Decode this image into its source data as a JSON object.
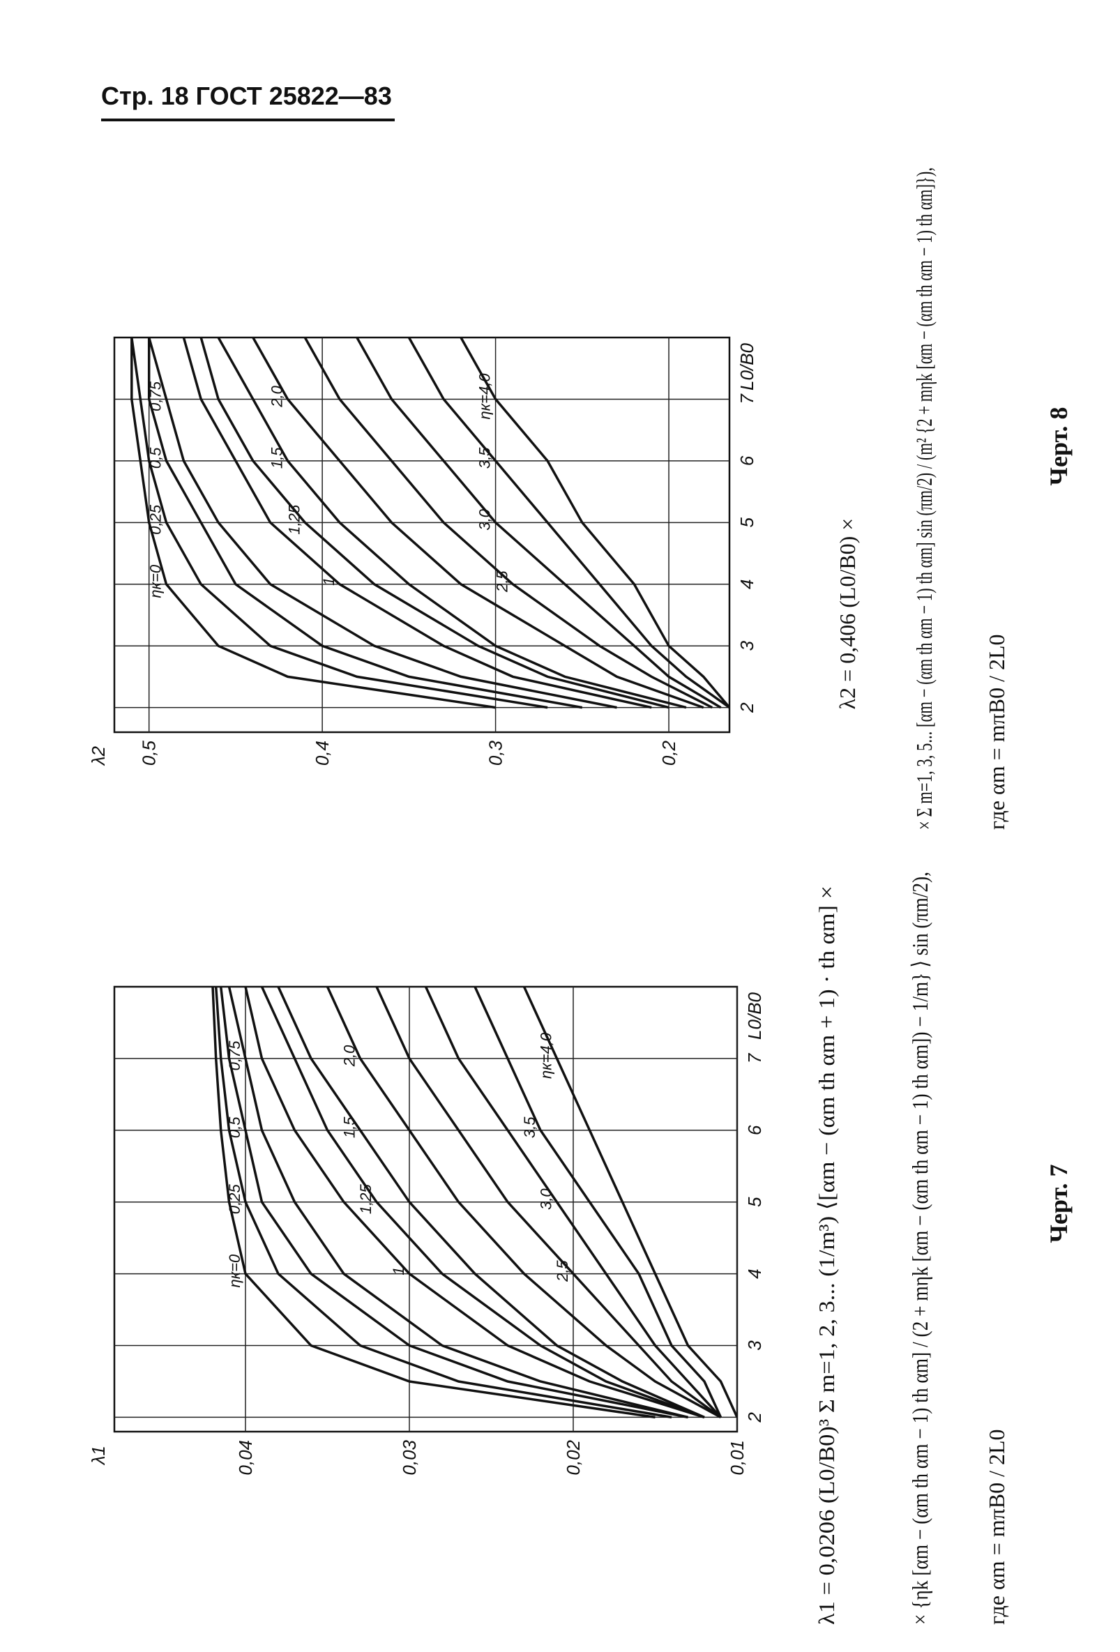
{
  "header": {
    "text": "Стр. 18 ГОСТ 25822—83"
  },
  "chart_data": [
    {
      "type": "line",
      "y_label": "λ1",
      "x_label": "L0/B0",
      "x": [
        2,
        2.5,
        3,
        4,
        5,
        6,
        7,
        8
      ],
      "xlim": [
        1.8,
        8
      ],
      "ylim": [
        0.01,
        0.048
      ],
      "xticks": [
        2,
        3,
        4,
        5,
        6,
        7
      ],
      "yticks": [
        {
          "value": 0.01,
          "label": "0,01"
        },
        {
          "value": 0.02,
          "label": "0,02"
        },
        {
          "value": 0.03,
          "label": "0,03"
        },
        {
          "value": 0.04,
          "label": "0,04"
        }
      ],
      "grid": true,
      "color": "#111111",
      "series": [
        {
          "name": "ηк=0",
          "values": [
            0.015,
            0.03,
            0.036,
            0.04,
            0.041,
            0.0415,
            0.0418,
            0.042
          ]
        },
        {
          "name": "0,25",
          "values": [
            0.014,
            0.027,
            0.033,
            0.038,
            0.04,
            0.041,
            0.0415,
            0.0418
          ]
        },
        {
          "name": "0,5",
          "values": [
            0.013,
            0.024,
            0.03,
            0.036,
            0.039,
            0.04,
            0.041,
            0.0415
          ]
        },
        {
          "name": "0,75",
          "values": [
            0.013,
            0.022,
            0.028,
            0.034,
            0.037,
            0.039,
            0.04,
            0.041
          ]
        },
        {
          "name": "1",
          "values": [
            0.012,
            0.019,
            0.024,
            0.03,
            0.034,
            0.037,
            0.039,
            0.04
          ]
        },
        {
          "name": "1,25",
          "values": [
            0.012,
            0.018,
            0.022,
            0.028,
            0.032,
            0.035,
            0.037,
            0.039
          ]
        },
        {
          "name": "1,5",
          "values": [
            0.012,
            0.017,
            0.021,
            0.026,
            0.03,
            0.033,
            0.036,
            0.038
          ]
        },
        {
          "name": "2,0",
          "values": [
            0.011,
            0.015,
            0.018,
            0.023,
            0.027,
            0.03,
            0.033,
            0.035
          ]
        },
        {
          "name": "2,5",
          "values": [
            0.011,
            0.014,
            0.016,
            0.02,
            0.024,
            0.027,
            0.03,
            0.032
          ]
        },
        {
          "name": "3,0",
          "values": [
            0.011,
            0.013,
            0.015,
            0.018,
            0.021,
            0.024,
            0.027,
            0.029
          ]
        },
        {
          "name": "3,5",
          "values": [
            0.011,
            0.012,
            0.014,
            0.016,
            0.019,
            0.022,
            0.024,
            0.026
          ]
        },
        {
          "name": "ηк=4,0",
          "values": [
            0.01,
            0.011,
            0.013,
            0.015,
            0.017,
            0.019,
            0.021,
            0.023
          ]
        }
      ]
    },
    {
      "type": "line",
      "y_label": "λ2",
      "x_label": "L0/B0",
      "x": [
        2,
        2.5,
        3,
        4,
        5,
        6,
        7,
        8
      ],
      "xlim": [
        1.6,
        8
      ],
      "ylim": [
        0.165,
        0.52
      ],
      "xticks": [
        2,
        3,
        4,
        5,
        6,
        7
      ],
      "yticks": [
        {
          "value": 0.2,
          "label": "0,2"
        },
        {
          "value": 0.3,
          "label": "0,3"
        },
        {
          "value": 0.4,
          "label": "0,4"
        },
        {
          "value": 0.5,
          "label": "0,5"
        }
      ],
      "grid": true,
      "color": "#111111",
      "series": [
        {
          "name": "ηк=0",
          "values": [
            0.3,
            0.42,
            0.46,
            0.49,
            0.5,
            0.505,
            0.51,
            0.51
          ]
        },
        {
          "name": "0,25",
          "values": [
            0.27,
            0.38,
            0.43,
            0.47,
            0.49,
            0.5,
            0.505,
            0.51
          ]
        },
        {
          "name": "0,5",
          "values": [
            0.25,
            0.35,
            0.4,
            0.45,
            0.47,
            0.49,
            0.5,
            0.5
          ]
        },
        {
          "name": "0,75",
          "values": [
            0.23,
            0.32,
            0.37,
            0.43,
            0.46,
            0.48,
            0.49,
            0.5
          ]
        },
        {
          "name": "1",
          "values": [
            0.21,
            0.29,
            0.33,
            0.39,
            0.43,
            0.45,
            0.47,
            0.48
          ]
        },
        {
          "name": "1,25",
          "values": [
            0.2,
            0.27,
            0.31,
            0.37,
            0.41,
            0.44,
            0.46,
            0.47
          ]
        },
        {
          "name": "1,5",
          "values": [
            0.19,
            0.26,
            0.3,
            0.35,
            0.39,
            0.42,
            0.44,
            0.46
          ]
        },
        {
          "name": "2,0",
          "values": [
            0.18,
            0.23,
            0.26,
            0.32,
            0.36,
            0.39,
            0.42,
            0.44
          ]
        },
        {
          "name": "2,5",
          "values": [
            0.175,
            0.21,
            0.24,
            0.29,
            0.33,
            0.36,
            0.39,
            0.41
          ]
        },
        {
          "name": "3,0",
          "values": [
            0.17,
            0.2,
            0.22,
            0.26,
            0.3,
            0.33,
            0.36,
            0.38
          ]
        },
        {
          "name": "3,5",
          "values": [
            0.165,
            0.19,
            0.21,
            0.24,
            0.27,
            0.3,
            0.33,
            0.35
          ]
        },
        {
          "name": "ηк=4,0",
          "values": [
            0.165,
            0.18,
            0.2,
            0.22,
            0.25,
            0.27,
            0.3,
            0.32
          ]
        }
      ]
    }
  ],
  "formulas": {
    "chart7": [
      "λ1 = 0,0206 (L0/B0)³ Σ m=1, 2, 3... (1/m³) ⟨[αm − (αm th αm + 1) · th αm] ×",
      "× {ηk [αm − (αm th αm − 1) th αm] / (2 + mηk [αm − (αm th αm − 1) th αm]) − 1/m} ⟩ sin (πm/2),",
      "где αm = mπB0 / 2L0"
    ],
    "chart8": [
      "λ2 = 0,406 (L0/B0) ×",
      "× Σ m=1, 3, 5... [αm − (αm th αm − 1) th αm] sin (πm/2) / (m² {2 + mηk [αm − (αm th αm − 1) th αm]}),",
      "где αm = mπB0 / 2L0"
    ]
  },
  "captions": [
    "Черт. 7",
    "Черт. 8"
  ]
}
